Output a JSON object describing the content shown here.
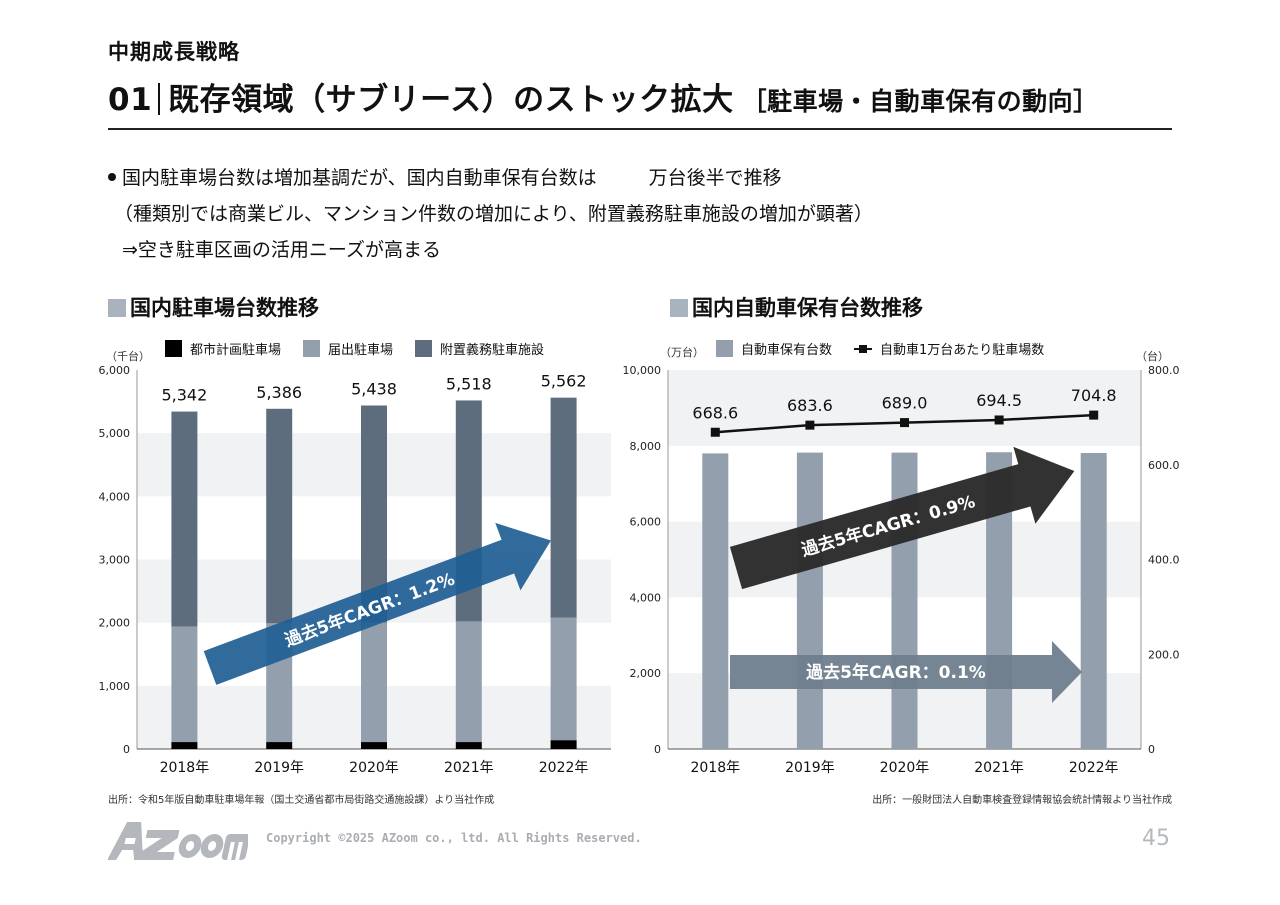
{
  "header": {
    "section": "中期成長戦略",
    "number": "01",
    "title": "既存領域（サブリース）のストック拡大",
    "subtitle": "［駐車場・自動車保有の動向］"
  },
  "bullets": {
    "line1_a": "国内駐車場台数は増加基調だが、国内自動車保有台数は",
    "line1_b": "万台後半で推移",
    "line2": "（種類別では商業ビル、マンション件数の増加により、附置義務駐車施設の増加が顕著）",
    "line3": "⇒空き駐車区画の活用ニーズが高まる"
  },
  "chart_left": {
    "title": "国内駐車場台数推移",
    "unit": "（千台）",
    "legend": [
      "都市計画駐車場",
      "届出駐車場",
      "附置義務駐車施設"
    ],
    "cagr_label": "過去5年CAGR：1.2%",
    "source": "出所：令和5年版自動車駐車場年報（国土交通省都市局街路交通施設課）より当社作成"
  },
  "chart_right": {
    "title": "国内自動車保有台数推移",
    "unit_left": "（万台）",
    "unit_right": "（台）",
    "legend": [
      "自動車保有台数",
      "自動車1万台あたり駐車場数"
    ],
    "cagr_label_1": "過去5年CAGR：0.9%",
    "cagr_label_2": "過去5年CAGR：0.1%",
    "source": "出所：一般財団法人自動車検査登録情報協会統計情報より当社作成"
  },
  "chart_data": [
    {
      "type": "bar",
      "title": "国内駐車場台数推移",
      "stacked": true,
      "categories": [
        "2018年",
        "2019年",
        "2020年",
        "2021年",
        "2022年"
      ],
      "series": [
        {
          "name": "都市計画駐車場",
          "color": "#000000",
          "values": [
            110,
            110,
            110,
            110,
            140
          ]
        },
        {
          "name": "届出駐車場",
          "color": "#939fac",
          "values": [
            1830,
            1880,
            1890,
            1910,
            1940
          ]
        },
        {
          "name": "附置義務駐車施設",
          "color": "#5d6d7e",
          "values": [
            3402,
            3396,
            3438,
            3498,
            3482
          ]
        }
      ],
      "totals": [
        5342,
        5386,
        5438,
        5518,
        5562
      ],
      "total_labels": [
        "5,342",
        "5,386",
        "5,438",
        "5,518",
        "5,562"
      ],
      "ylabel": "（千台）",
      "ylim": [
        0,
        6000
      ],
      "yticks": [
        "0",
        "1,000",
        "2,000",
        "3,000",
        "4,000",
        "5,000",
        "6,000"
      ],
      "annotation": "過去5年CAGR：1.2%"
    },
    {
      "type": "bar",
      "title": "国内自動車保有台数推移",
      "categories": [
        "2018年",
        "2019年",
        "2020年",
        "2021年",
        "2022年"
      ],
      "series": [
        {
          "name": "自動車保有台数",
          "color": "#939fac",
          "axis": "left",
          "values": [
            7800,
            7820,
            7820,
            7830,
            7810
          ]
        },
        {
          "name": "自動車1万台あたり駐車場数",
          "color": "#111111",
          "type": "line",
          "axis": "right",
          "values": [
            668.6,
            683.6,
            689.0,
            694.5,
            704.8
          ],
          "labels": [
            "668.6",
            "683.6",
            "689.0",
            "694.5",
            "704.8"
          ]
        }
      ],
      "ylabel_left": "（万台）",
      "ylabel_right": "（台）",
      "ylim_left": [
        0,
        10000
      ],
      "ylim_right": [
        0,
        800
      ],
      "yticks_left": [
        "0",
        "2,000",
        "4,000",
        "6,000",
        "8,000",
        "10,000"
      ],
      "yticks_right": [
        "0",
        "200.0",
        "400.0",
        "600.0",
        "800.0"
      ],
      "annotations": [
        "過去5年CAGR：0.9%",
        "過去5年CAGR：0.1%"
      ]
    }
  ],
  "footer": {
    "logo": "AZoom",
    "copyright": "Copyright ©2025 AZoom co., ltd. All Rights Reserved.",
    "page": "45"
  }
}
